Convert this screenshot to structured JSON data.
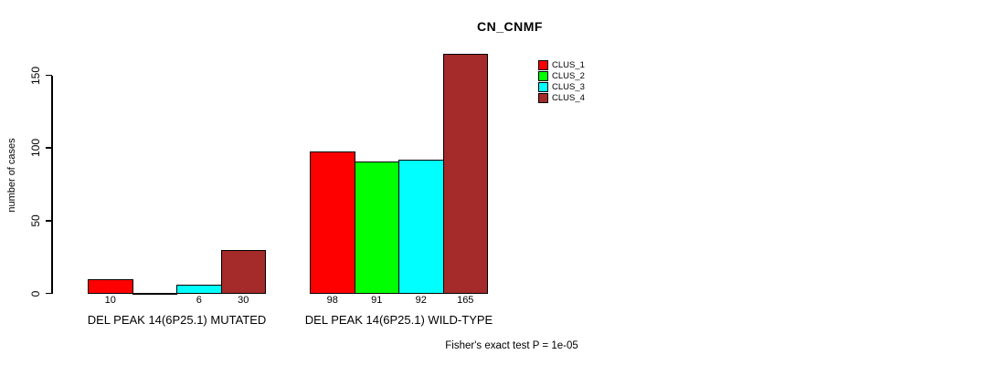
{
  "chart_data": {
    "type": "bar",
    "title": "CN_CNMF",
    "ylabel": "number of cases",
    "xlabel": "",
    "ylim": [
      0,
      165
    ],
    "yticks": [
      0,
      50,
      100,
      150
    ],
    "grid": false,
    "legend_position": "top-right",
    "categories": [
      "DEL PEAK 14(6P25.1) MUTATED",
      "DEL PEAK 14(6P25.1) WILD-TYPE"
    ],
    "series": [
      {
        "name": "CLUS_1",
        "color": "#FF0000",
        "values": [
          10,
          98
        ]
      },
      {
        "name": "CLUS_2",
        "color": "#00FF00",
        "values": [
          0,
          91
        ]
      },
      {
        "name": "CLUS_3",
        "color": "#00FFFF",
        "values": [
          6,
          92
        ]
      },
      {
        "name": "CLUS_4",
        "color": "#A52A2A",
        "values": [
          30,
          165
        ]
      }
    ],
    "bar_value_labels": [
      [
        "10",
        "",
        "6",
        "30"
      ],
      [
        "98",
        "91",
        "92",
        "165"
      ]
    ],
    "annotation": "Fisher's exact test P = 1e-05"
  },
  "colors": {
    "background": "#FFFFFF",
    "axis": "#000000",
    "text": "#000000"
  }
}
